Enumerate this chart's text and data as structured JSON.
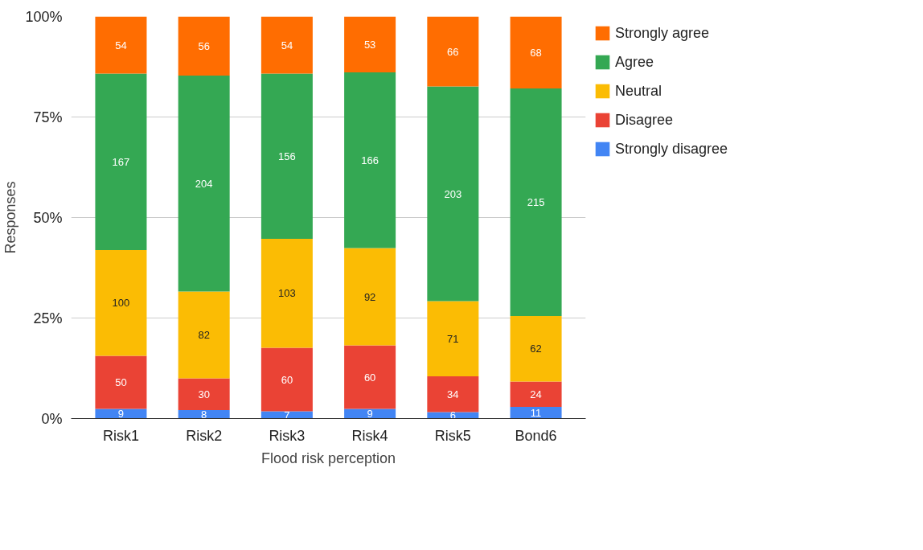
{
  "chart_data": {
    "type": "bar",
    "stacked": true,
    "xlabel": "Flood risk perception",
    "ylabel": "Responses",
    "categories": [
      "Risk1",
      "Risk2",
      "Risk3",
      "Risk4",
      "Risk5",
      "Bond6"
    ],
    "ylim": [
      0,
      100
    ],
    "yticks": [
      {
        "value": 0,
        "label": "0%"
      },
      {
        "value": 25,
        "label": "25%"
      },
      {
        "value": 50,
        "label": "50%"
      },
      {
        "value": 75,
        "label": "75%"
      },
      {
        "value": 100,
        "label": "100%"
      }
    ],
    "grid": "y",
    "legend": "top right",
    "series": [
      {
        "name": "Strongly disagree",
        "color": "#4285f4",
        "values": [
          2.4,
          2.1,
          1.8,
          2.4,
          1.6,
          2.9
        ]
      },
      {
        "name": "Disagree",
        "color": "#ea4335",
        "values": [
          13.2,
          7.9,
          15.8,
          15.8,
          8.9,
          6.3
        ]
      },
      {
        "name": "Neutral",
        "color": "#fbbc04",
        "values": [
          26.3,
          21.6,
          27.1,
          24.2,
          18.7,
          16.3
        ]
      },
      {
        "name": "Agree",
        "color": "#34a853",
        "values": [
          43.9,
          53.7,
          41.1,
          43.7,
          53.4,
          56.6
        ]
      },
      {
        "name": "Strongly agree",
        "color": "#ff6d01",
        "values": [
          14.2,
          14.7,
          14.2,
          13.9,
          17.4,
          17.9
        ]
      }
    ],
    "annotations": [
      "9",
      "50",
      "100",
      "167",
      "54",
      "8",
      "30",
      "82",
      "204",
      "56",
      "7",
      "60",
      "103",
      "156",
      "54",
      "9",
      "60",
      "92",
      "166",
      "53",
      "6",
      "34",
      "71",
      "203",
      "66",
      "11",
      "24",
      "62",
      "215",
      "68"
    ]
  }
}
